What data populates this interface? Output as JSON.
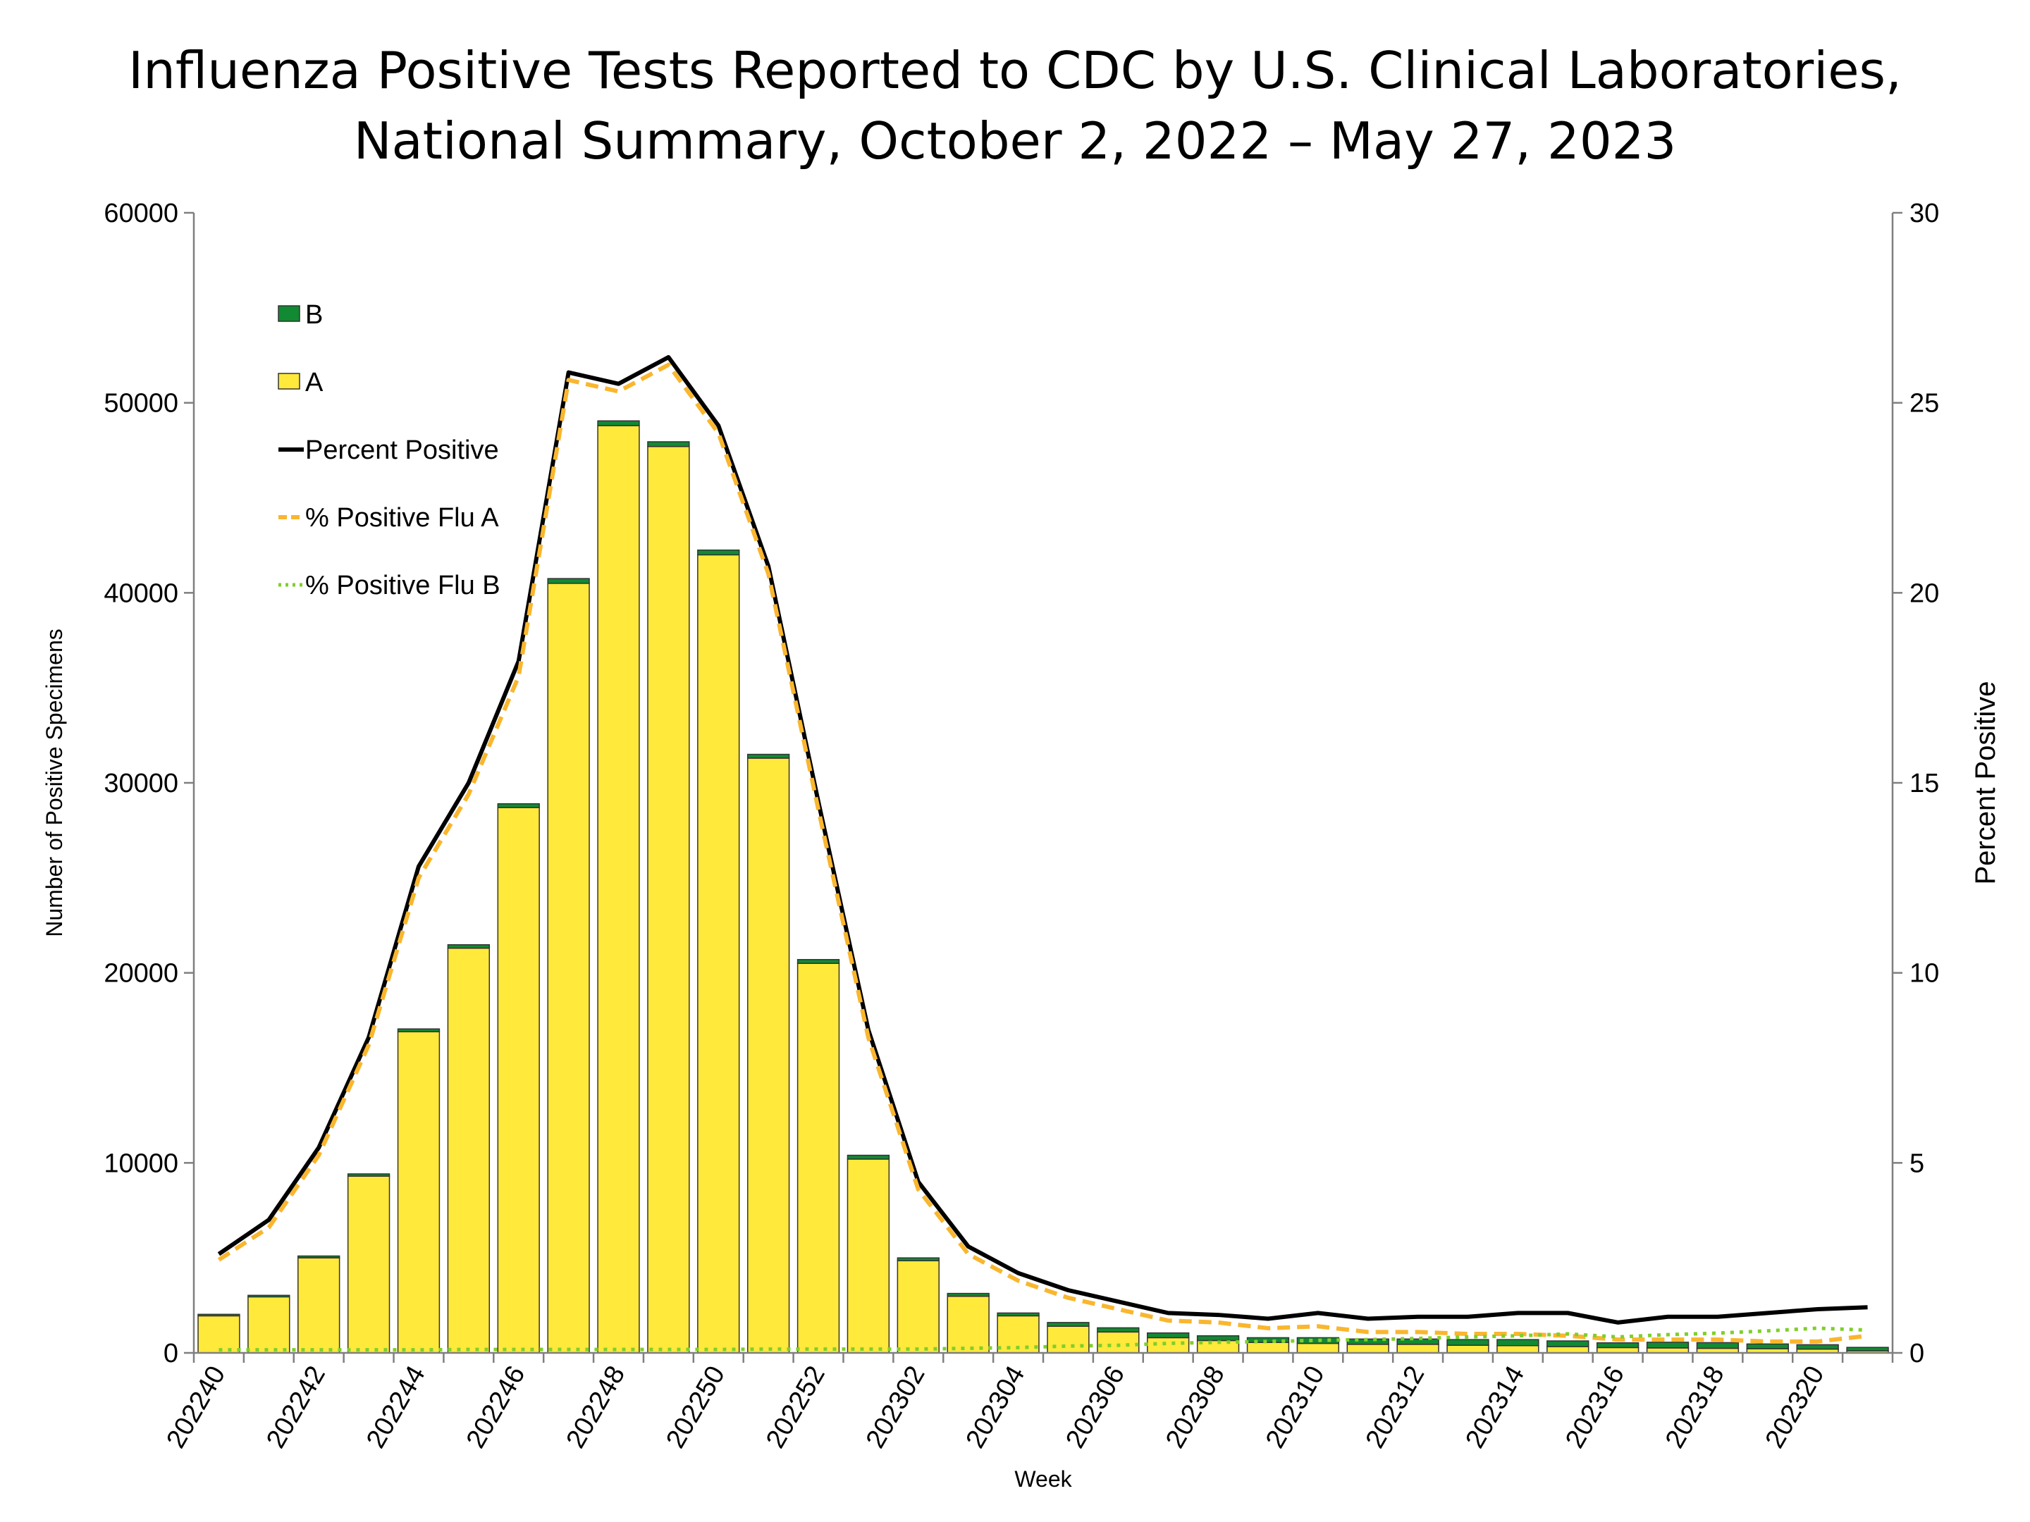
{
  "chart_data": {
    "type": "bar",
    "title_line1": "Influenza Positive Tests Reported to CDC by U.S. Clinical Laboratories,",
    "title_line2": "National Summary, October 2, 2022 – May 27, 2023",
    "xlabel": "Week",
    "ylabel_left": "Number of Positive Specimens",
    "ylabel_right": "Percent Positive",
    "ylim_left": [
      0,
      60000
    ],
    "ylim_right": [
      0,
      30
    ],
    "yticks_left": [
      "0",
      "10000",
      "20000",
      "30000",
      "40000",
      "50000",
      "60000"
    ],
    "yticks_right": [
      "0",
      "5",
      "10",
      "15",
      "20",
      "25",
      "30"
    ],
    "grid": false,
    "legend_position": "top-left",
    "categories": [
      "202240",
      "202241",
      "202242",
      "202243",
      "202244",
      "202245",
      "202246",
      "202247",
      "202248",
      "202249",
      "202250",
      "202251",
      "202252",
      "202301",
      "202302",
      "202303",
      "202304",
      "202305",
      "202306",
      "202307",
      "202308",
      "202309",
      "202310",
      "202311",
      "202312",
      "202313",
      "202314",
      "202315",
      "202316",
      "202317",
      "202318",
      "202319",
      "202320",
      "202321"
    ],
    "x_tick_labels": [
      "202240",
      "202242",
      "202244",
      "202246",
      "202248",
      "202250",
      "202252",
      "202302",
      "202304",
      "202306",
      "202308",
      "202310",
      "202312",
      "202314",
      "202316",
      "202318",
      "202320"
    ],
    "series": [
      {
        "name": "A",
        "kind": "bar",
        "color": "#FFE93B",
        "values": [
          1950,
          2950,
          5000,
          9300,
          16900,
          21300,
          28700,
          40500,
          48800,
          47700,
          42000,
          31300,
          20500,
          10200,
          4850,
          2980,
          1950,
          1400,
          1100,
          800,
          650,
          550,
          500,
          450,
          450,
          400,
          380,
          330,
          280,
          260,
          240,
          220,
          200,
          110
        ]
      },
      {
        "name": "B",
        "kind": "bar",
        "color": "#118A33",
        "values": [
          80,
          80,
          100,
          120,
          150,
          180,
          200,
          250,
          250,
          250,
          250,
          200,
          200,
          200,
          150,
          150,
          150,
          200,
          220,
          250,
          250,
          250,
          300,
          280,
          280,
          300,
          320,
          300,
          250,
          300,
          300,
          250,
          230,
          180
        ]
      },
      {
        "name": "Percent Positive",
        "kind": "line",
        "color": "#000000",
        "values": [
          2.6,
          3.5,
          5.4,
          8.3,
          12.8,
          15.0,
          18.2,
          25.8,
          25.5,
          26.2,
          24.4,
          20.7,
          14.5,
          8.5,
          4.5,
          2.8,
          2.1,
          1.65,
          1.35,
          1.05,
          1.0,
          0.9,
          1.05,
          0.9,
          0.95,
          0.95,
          1.05,
          1.05,
          0.8,
          0.95,
          0.95,
          1.05,
          1.15,
          1.2
        ]
      },
      {
        "name": "% Positive Flu A",
        "kind": "line",
        "color": "#F9B62E",
        "values": [
          2.45,
          3.3,
          5.2,
          8.1,
          12.5,
          14.7,
          17.8,
          25.6,
          25.3,
          26.0,
          24.2,
          20.5,
          14.3,
          8.3,
          4.3,
          2.6,
          1.9,
          1.45,
          1.15,
          0.85,
          0.8,
          0.65,
          0.7,
          0.55,
          0.55,
          0.5,
          0.5,
          0.45,
          0.35,
          0.35,
          0.35,
          0.3,
          0.3,
          0.45
        ]
      },
      {
        "name": "% Positive Flu B",
        "kind": "line",
        "color": "#7FCF2A",
        "values": [
          0.08,
          0.08,
          0.08,
          0.08,
          0.08,
          0.09,
          0.09,
          0.09,
          0.09,
          0.09,
          0.09,
          0.1,
          0.1,
          0.1,
          0.1,
          0.12,
          0.14,
          0.18,
          0.2,
          0.25,
          0.28,
          0.3,
          0.33,
          0.35,
          0.38,
          0.42,
          0.45,
          0.5,
          0.42,
          0.48,
          0.52,
          0.58,
          0.65,
          0.6
        ]
      }
    ]
  }
}
